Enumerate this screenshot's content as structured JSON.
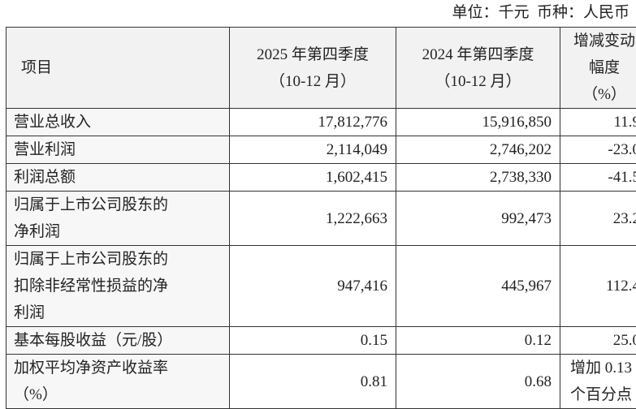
{
  "unit_note": "单位：千元  币种：人民币",
  "table": {
    "header": [
      [
        "项目"
      ],
      [
        "2025 年第四季度",
        "（10-12 月）"
      ],
      [
        "2024 年第四季度",
        "（10-12 月）"
      ],
      [
        "增减变动",
        "幅度",
        "（%）"
      ]
    ],
    "rows": [
      [
        [
          "营业总收入"
        ],
        [
          "17,812,776"
        ],
        [
          "15,916,850"
        ],
        [
          "11.9"
        ]
      ],
      [
        [
          "营业利润"
        ],
        [
          "2,114,049"
        ],
        [
          "2,746,202"
        ],
        [
          "-23.0"
        ]
      ],
      [
        [
          "利润总额"
        ],
        [
          "1,602,415"
        ],
        [
          "2,738,330"
        ],
        [
          "-41.5"
        ]
      ],
      [
        [
          "归属于上市公司股东的",
          "净利润"
        ],
        [
          "1,222,663"
        ],
        [
          "992,473"
        ],
        [
          "23.2"
        ]
      ],
      [
        [
          "归属于上市公司股东的",
          "扣除非经常性损益的净",
          "利润"
        ],
        [
          "947,416"
        ],
        [
          "445,967"
        ],
        [
          "112.4"
        ]
      ],
      [
        [
          "基本每股收益（元/股）"
        ],
        [
          "0.15"
        ],
        [
          "0.12"
        ],
        [
          "25.0"
        ]
      ],
      [
        [
          "加权平均净资产收益率",
          "（%）"
        ],
        [
          "0.81"
        ],
        [
          "0.68"
        ],
        [
          "增加 0.13",
          "个百分点"
        ]
      ]
    ]
  }
}
